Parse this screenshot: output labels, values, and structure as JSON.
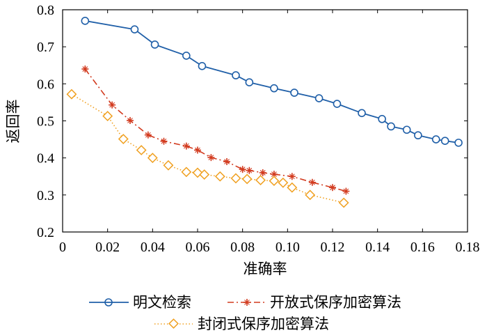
{
  "chart_data": {
    "type": "line",
    "xlabel": "准确率",
    "ylabel": "返回率",
    "xlim": [
      0,
      0.18
    ],
    "ylim": [
      0.2,
      0.8
    ],
    "xticks": [
      "0",
      "0.02",
      "0.04",
      "0.06",
      "0.08",
      "0.10",
      "0.12",
      "0.14",
      "0.16",
      "0.18"
    ],
    "yticks": [
      "0.2",
      "0.3",
      "0.4",
      "0.5",
      "0.6",
      "0.7",
      "0.8"
    ],
    "grid": false,
    "legend_position": "bottom",
    "series": [
      {
        "name": "明文检索",
        "color": "#1f5fa8",
        "line_style": "solid",
        "marker": "circle",
        "x": [
          0.01,
          0.032,
          0.041,
          0.055,
          0.062,
          0.077,
          0.083,
          0.094,
          0.103,
          0.114,
          0.122,
          0.133,
          0.142,
          0.146,
          0.153,
          0.158,
          0.166,
          0.17,
          0.176
        ],
        "y": [
          0.77,
          0.747,
          0.706,
          0.676,
          0.648,
          0.623,
          0.604,
          0.588,
          0.576,
          0.561,
          0.546,
          0.521,
          0.505,
          0.485,
          0.476,
          0.461,
          0.45,
          0.446,
          0.441
        ]
      },
      {
        "name": "开放式保序加密算法",
        "color": "#d23a1e",
        "line_style": "dashdot",
        "marker": "star",
        "x": [
          0.01,
          0.022,
          0.03,
          0.038,
          0.045,
          0.055,
          0.06,
          0.066,
          0.073,
          0.08,
          0.083,
          0.089,
          0.094,
          0.102,
          0.111,
          0.12,
          0.126
        ],
        "y": [
          0.64,
          0.543,
          0.501,
          0.462,
          0.445,
          0.432,
          0.421,
          0.401,
          0.39,
          0.369,
          0.366,
          0.36,
          0.356,
          0.35,
          0.334,
          0.32,
          0.31
        ]
      },
      {
        "name": "封闭式保序加密算法",
        "color": "#f0a020",
        "line_style": "dotted",
        "marker": "diamond",
        "x": [
          0.004,
          0.02,
          0.027,
          0.035,
          0.04,
          0.047,
          0.055,
          0.06,
          0.063,
          0.07,
          0.077,
          0.082,
          0.088,
          0.094,
          0.098,
          0.102,
          0.11,
          0.125
        ],
        "y": [
          0.572,
          0.513,
          0.451,
          0.421,
          0.4,
          0.38,
          0.362,
          0.36,
          0.355,
          0.35,
          0.345,
          0.343,
          0.34,
          0.338,
          0.333,
          0.32,
          0.3,
          0.279
        ]
      }
    ]
  }
}
